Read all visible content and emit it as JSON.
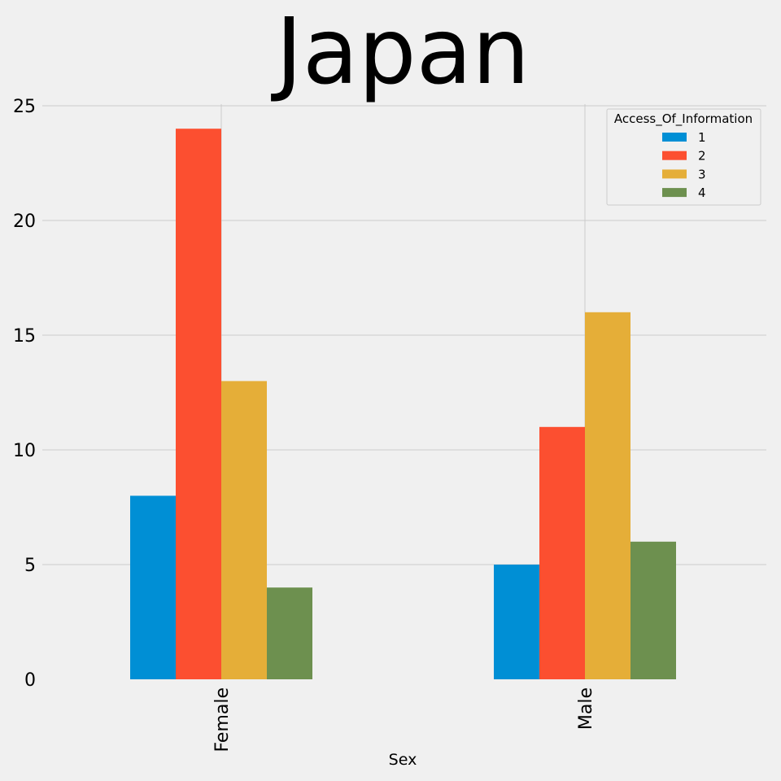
{
  "chart_data": {
    "type": "bar",
    "title": "Japan",
    "xlabel": "Sex",
    "ylabel": "",
    "categories": [
      "Female",
      "Male"
    ],
    "ylim": [
      0,
      25
    ],
    "yticks": [
      0,
      5,
      10,
      15,
      20,
      25
    ],
    "grid": true,
    "legend": {
      "title": "Access_Of_Information",
      "position": "top-right"
    },
    "series": [
      {
        "name": "1",
        "values": [
          8,
          5
        ],
        "color": "#008fd5"
      },
      {
        "name": "2",
        "values": [
          24,
          11
        ],
        "color": "#fc4f30"
      },
      {
        "name": "3",
        "values": [
          13,
          16
        ],
        "color": "#e5ae38"
      },
      {
        "name": "4",
        "values": [
          4,
          6
        ],
        "color": "#6d904f"
      }
    ]
  }
}
